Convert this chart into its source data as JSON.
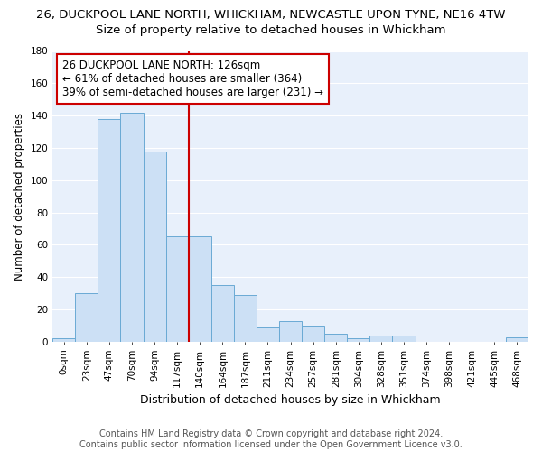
{
  "title": "26, DUCKPOOL LANE NORTH, WHICKHAM, NEWCASTLE UPON TYNE, NE16 4TW",
  "subtitle": "Size of property relative to detached houses in Whickham",
  "xlabel": "Distribution of detached houses by size in Whickham",
  "ylabel": "Number of detached properties",
  "categories": [
    "0sqm",
    "23sqm",
    "47sqm",
    "70sqm",
    "94sqm",
    "117sqm",
    "140sqm",
    "164sqm",
    "187sqm",
    "211sqm",
    "234sqm",
    "257sqm",
    "281sqm",
    "304sqm",
    "328sqm",
    "351sqm",
    "374sqm",
    "398sqm",
    "421sqm",
    "445sqm",
    "468sqm"
  ],
  "values": [
    2,
    30,
    138,
    142,
    118,
    65,
    65,
    35,
    29,
    9,
    13,
    10,
    5,
    2,
    4,
    4,
    0,
    0,
    0,
    0,
    3
  ],
  "bar_color": "#cce0f5",
  "bar_edge_color": "#6aaad4",
  "vline_x_index": 6,
  "vline_color": "#cc0000",
  "annotation_line1": "26 DUCKPOOL LANE NORTH: 126sqm",
  "annotation_line2": "← 61% of detached houses are smaller (364)",
  "annotation_line3": "39% of semi-detached houses are larger (231) →",
  "annotation_box_color": "#ffffff",
  "annotation_box_edge_color": "#cc0000",
  "ylim": [
    0,
    180
  ],
  "yticks": [
    0,
    20,
    40,
    60,
    80,
    100,
    120,
    140,
    160,
    180
  ],
  "bg_color": "#e8f0fb",
  "grid_color": "#ffffff",
  "footer_text": "Contains HM Land Registry data © Crown copyright and database right 2024.\nContains public sector information licensed under the Open Government Licence v3.0.",
  "fig_bg_color": "#ffffff",
  "title_fontsize": 9.5,
  "subtitle_fontsize": 9.5,
  "xlabel_fontsize": 9,
  "ylabel_fontsize": 8.5,
  "tick_fontsize": 7.5,
  "annotation_fontsize": 8.5,
  "footer_fontsize": 7
}
